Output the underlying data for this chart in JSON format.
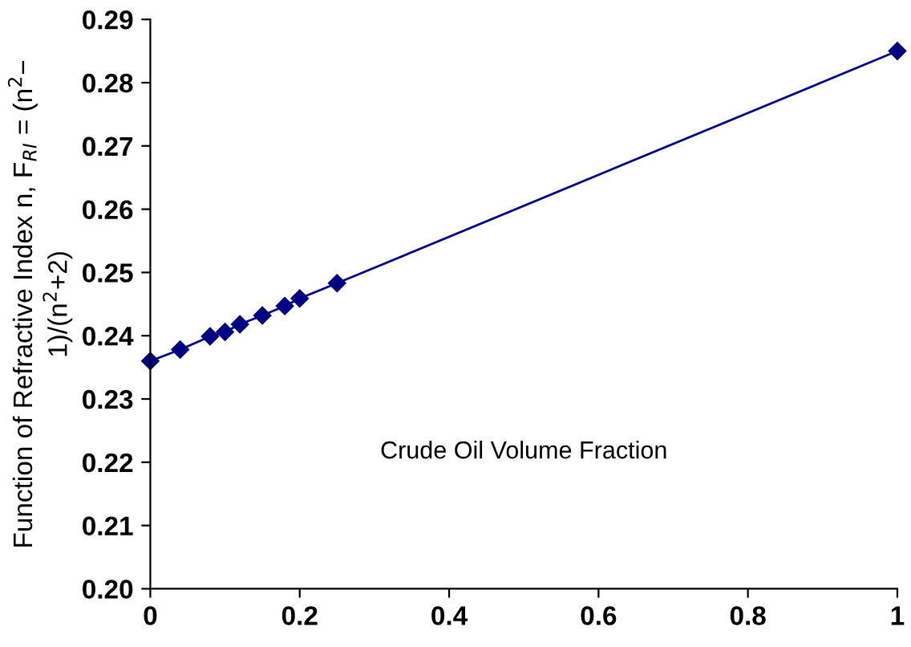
{
  "chart_data": {
    "type": "line",
    "xlabel": "Crude Oil Volume Fraction",
    "ylabel": "Function of Refractive Index n, F$_{RI}$ = (n$^{2}$−\n1)/(n$^{2}$+2)",
    "x": [
      0,
      0.04,
      0.08,
      0.1,
      0.12,
      0.15,
      0.18,
      0.2,
      0.25,
      1
    ],
    "series": [
      {
        "color": "#000080",
        "values": [
          0.236,
          0.2378,
          0.2399,
          0.2406,
          0.2418,
          0.2432,
          0.2447,
          0.2459,
          0.2483,
          0.285
        ]
      }
    ],
    "marker": "diamond",
    "line_style": "solid",
    "grid": false,
    "legend": false,
    "xlim": [
      0,
      1
    ],
    "xticks": [
      0,
      0.2,
      0.4,
      0.6,
      0.8,
      1
    ],
    "ylim": [
      0.2,
      0.29
    ],
    "yticks": [
      {
        "value": 0.2,
        "label": "0.20"
      },
      0.21,
      0.22,
      0.23,
      0.24,
      0.25,
      0.26,
      0.27,
      0.28,
      0.29
    ]
  }
}
